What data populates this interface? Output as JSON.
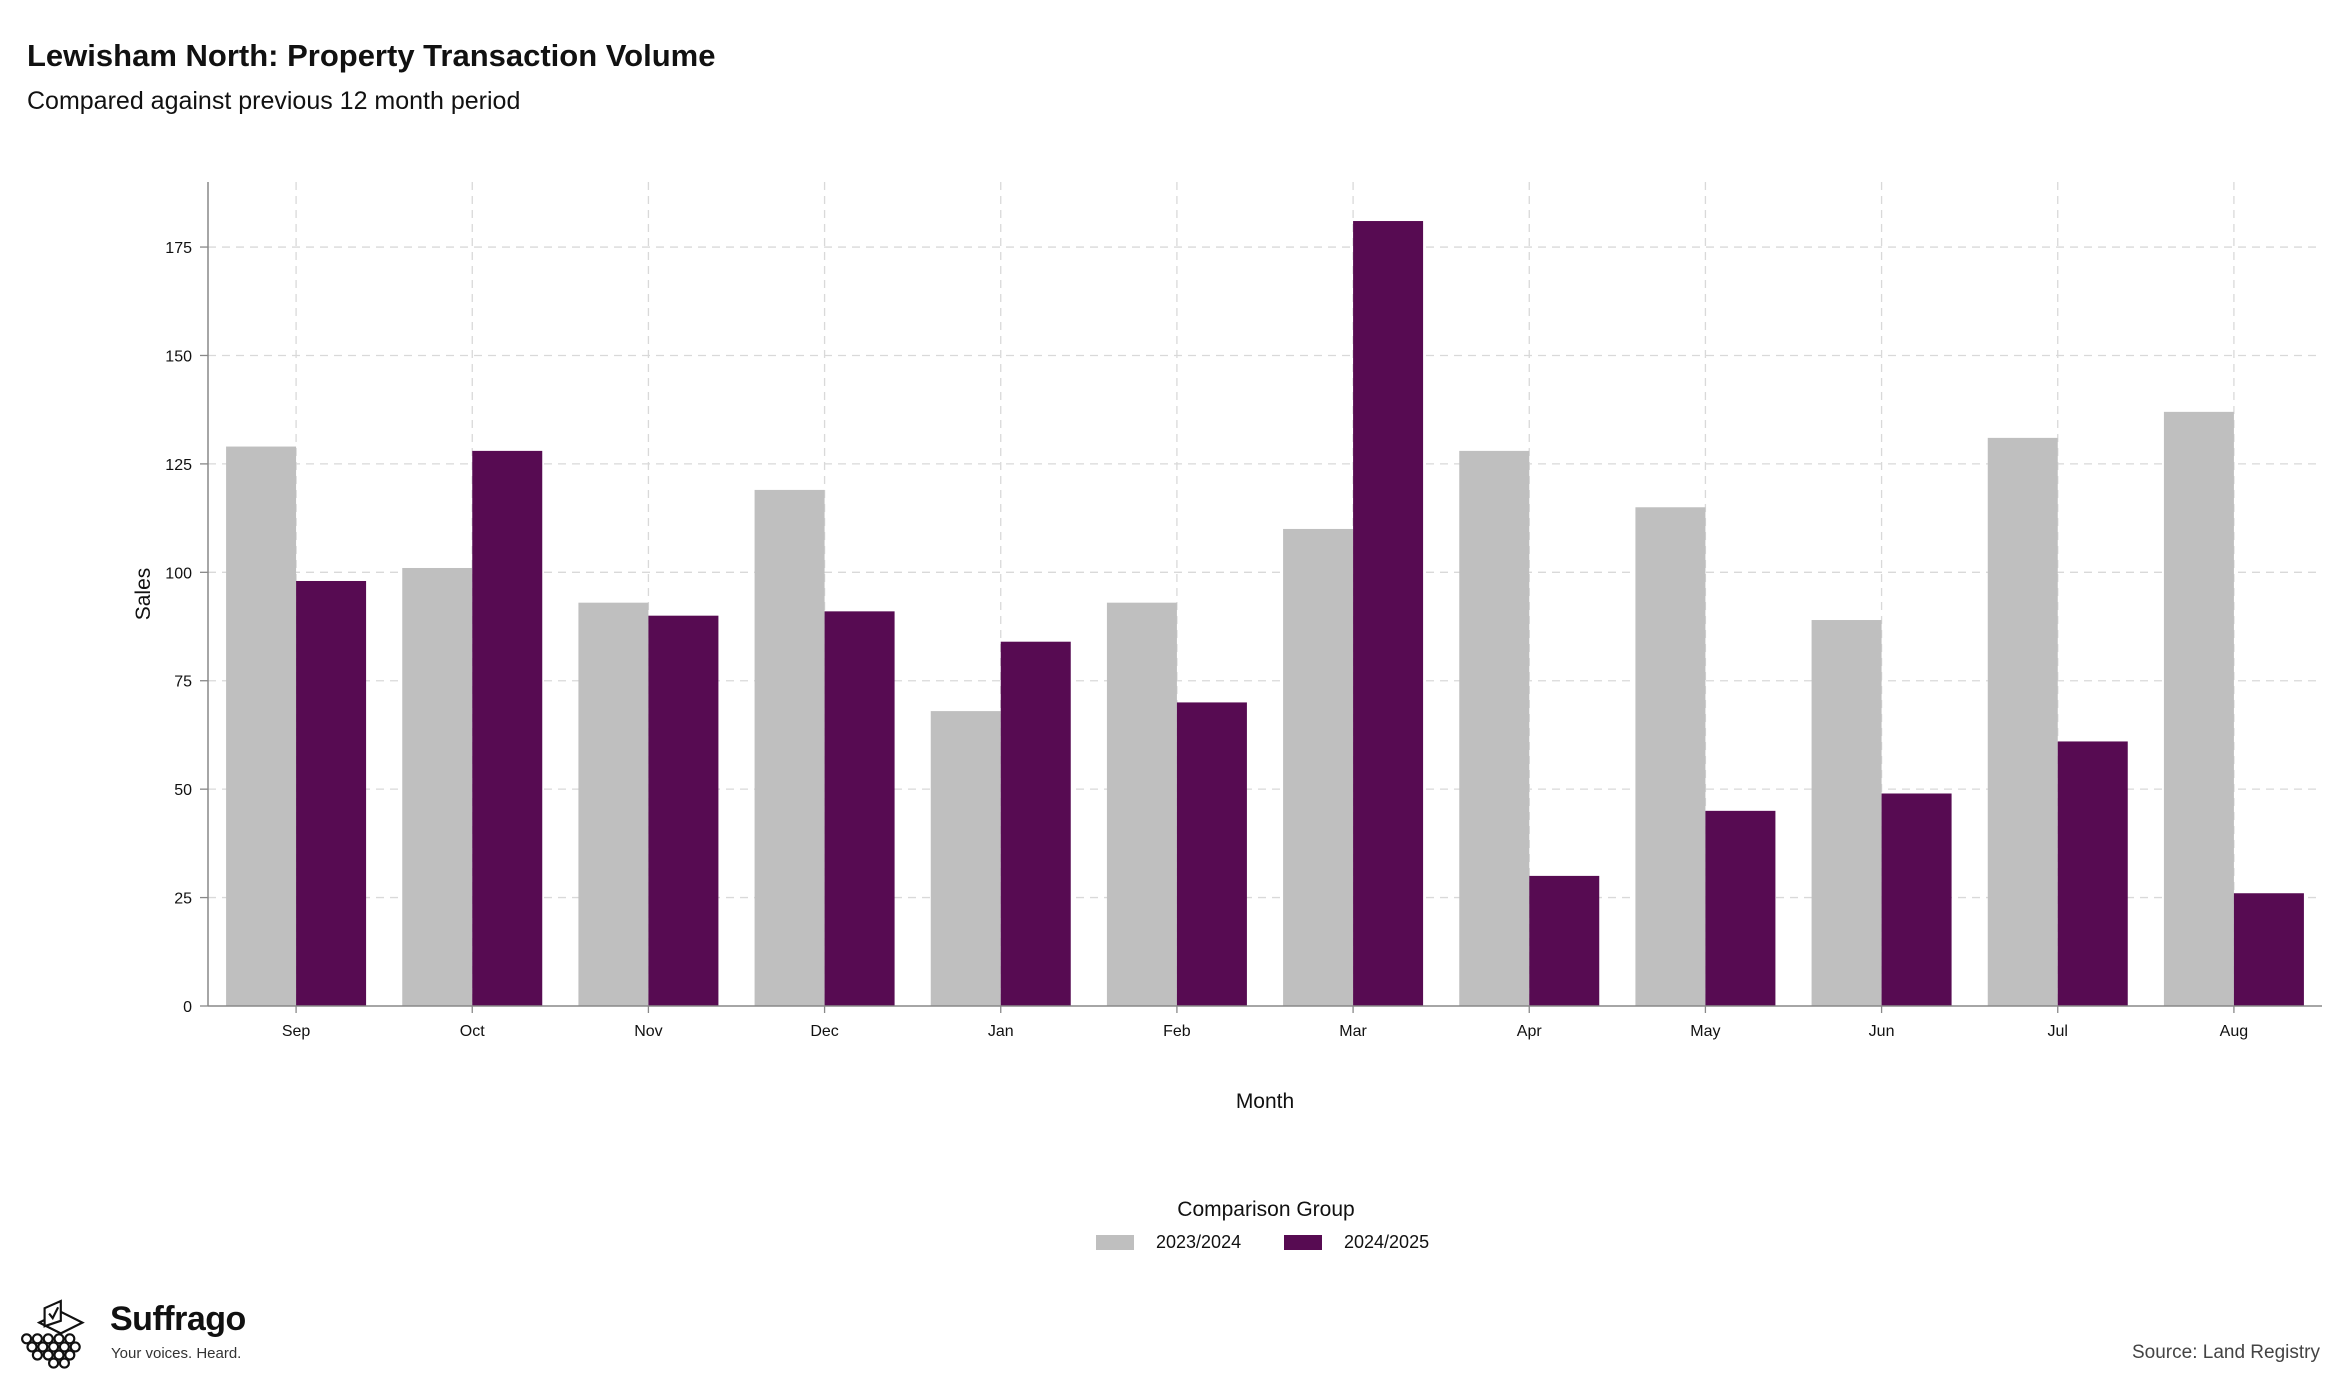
{
  "header": {
    "title": "Lewisham North: Property Transaction Volume",
    "subtitle": "Compared against previous 12 month period"
  },
  "chart_data": {
    "type": "bar",
    "title": "Lewisham North: Property Transaction Volume",
    "subtitle": "Compared against previous 12 month period",
    "xlabel": "Month",
    "ylabel": "Sales",
    "categories": [
      "Sep",
      "Oct",
      "Nov",
      "Dec",
      "Jan",
      "Feb",
      "Mar",
      "Apr",
      "May",
      "Jun",
      "Jul",
      "Aug"
    ],
    "series": [
      {
        "name": "2023/2024",
        "color": "#bfbfbf",
        "values": [
          129,
          101,
          93,
          119,
          68,
          93,
          110,
          128,
          115,
          89,
          131,
          137
        ]
      },
      {
        "name": "2024/2025",
        "color": "#570b52",
        "values": [
          98,
          128,
          90,
          91,
          84,
          70,
          181,
          30,
          45,
          49,
          61,
          26
        ]
      }
    ],
    "yticks": [
      0,
      25,
      50,
      75,
      100,
      125,
      150,
      175
    ],
    "ylim": [
      0,
      190
    ],
    "grid": true,
    "legend": {
      "title": "Comparison Group",
      "position": "bottom-center"
    }
  },
  "branding": {
    "name": "Suffrago",
    "tagline": "Your voices. Heard.",
    "logo_icon": "ballot-box-icon"
  },
  "footer": {
    "source": "Source: Land Registry"
  }
}
